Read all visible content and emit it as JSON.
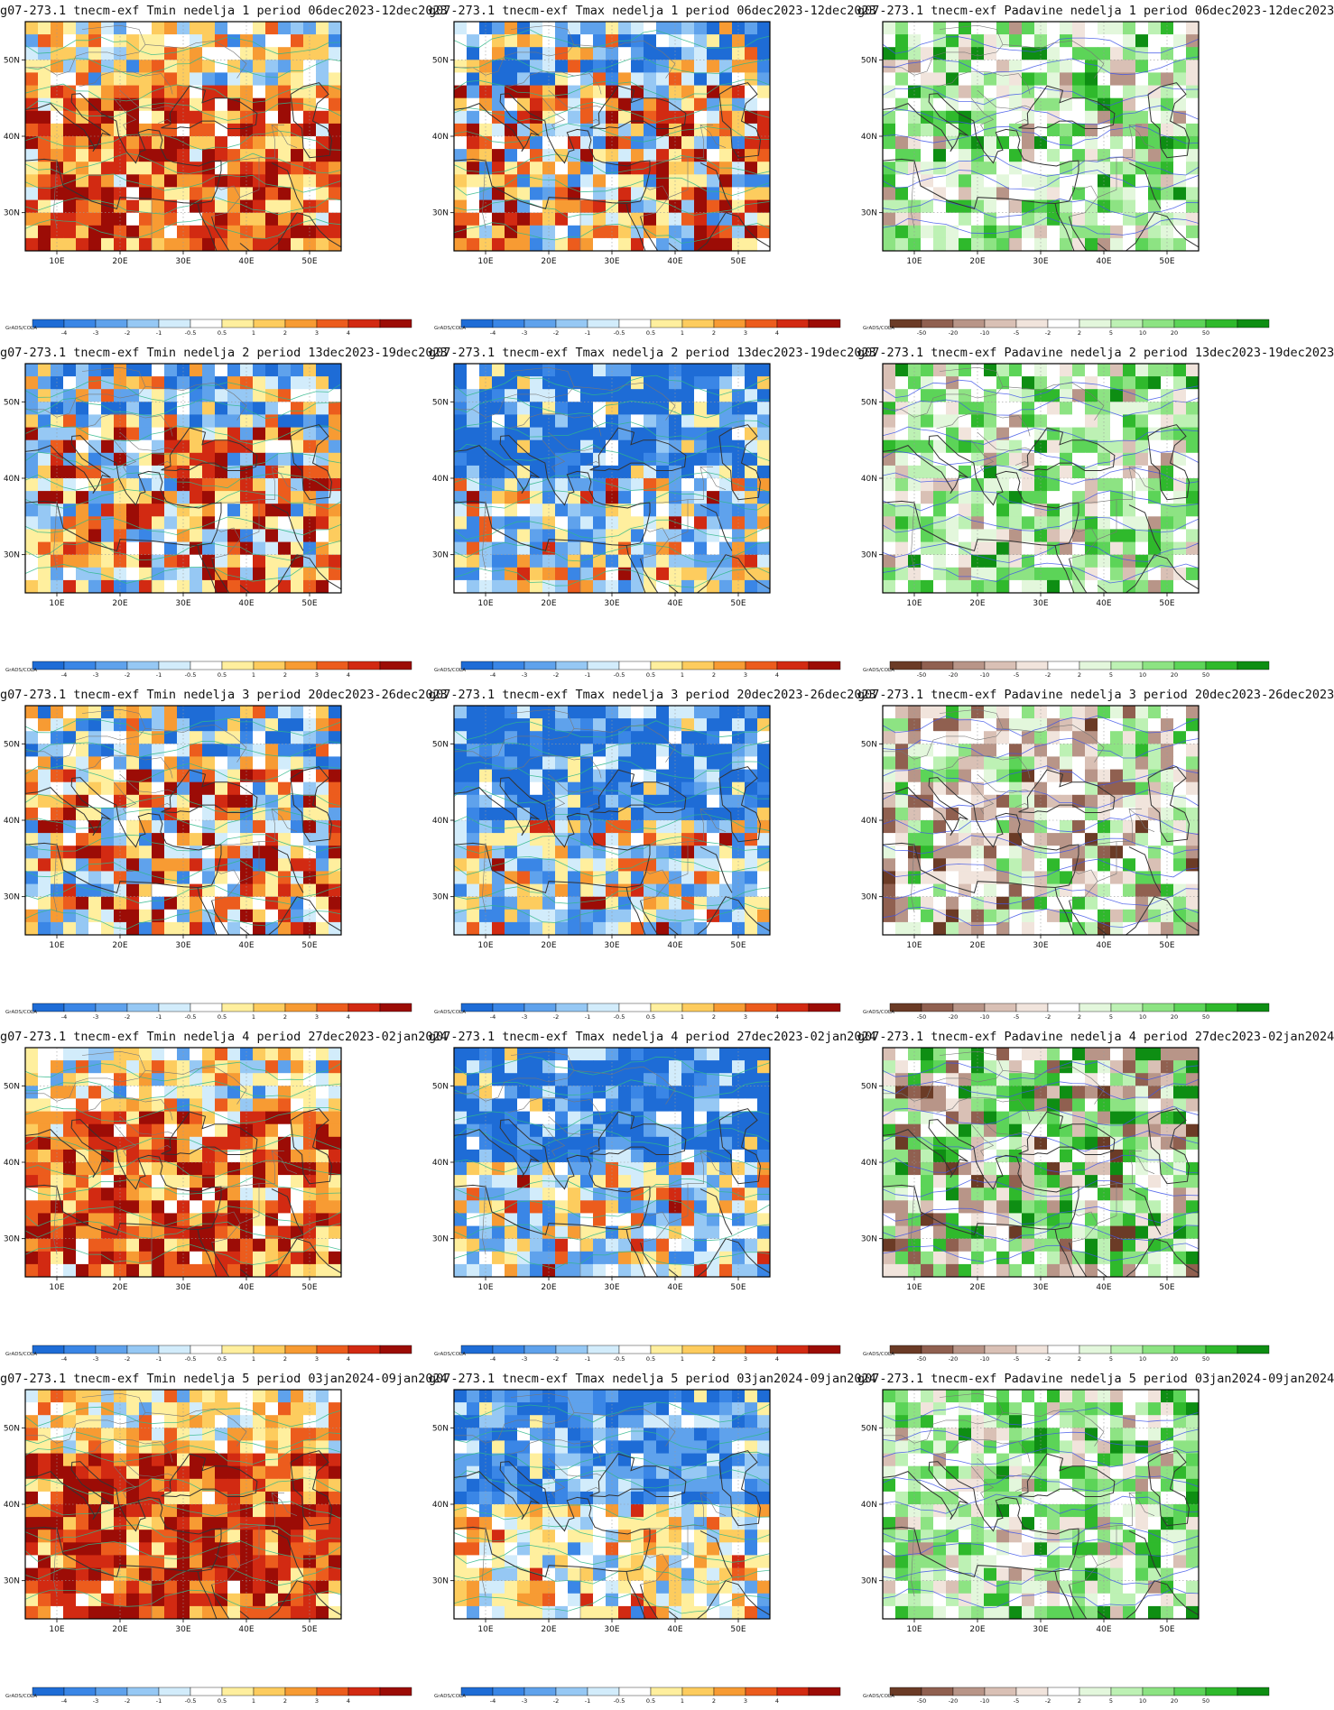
{
  "source_tag": "GrADS/COLA",
  "axes": {
    "x_ticks": [
      "10E",
      "20E",
      "30E",
      "40E",
      "50E"
    ],
    "y_ticks": [
      "50N",
      "40N",
      "30N"
    ]
  },
  "colorbars": {
    "temperature": {
      "labels": [
        "-4",
        "-3",
        "-2",
        "-1",
        "-0.5",
        "0.5",
        "1",
        "2",
        "3",
        "4"
      ],
      "colors": [
        "#1e6cd6",
        "#3a86e6",
        "#5fa2ec",
        "#96c8f4",
        "#d2ecfb",
        "#ffffff",
        "#ffef9e",
        "#fdcc5e",
        "#f79b33",
        "#ec5c1d",
        "#d22a12",
        "#9c0c06"
      ]
    },
    "precipitation": {
      "labels": [
        "-50",
        "-20",
        "-10",
        "-5",
        "-2",
        "2",
        "5",
        "10",
        "20",
        "50"
      ],
      "colors": [
        "#6b3b26",
        "#906050",
        "#b89588",
        "#d9c0b5",
        "#f1e4dc",
        "#ffffff",
        "#e3f7dc",
        "#bdf1b4",
        "#8de383",
        "#5cd458",
        "#2fb92c",
        "#0e8e13"
      ]
    }
  },
  "fields": {
    "Tmin": {
      "scale": "temperature",
      "contour_color": "#2fb88a"
    },
    "Tmax": {
      "scale": "temperature",
      "contour_color": "#2fb88a"
    },
    "Padavine": {
      "scale": "precipitation",
      "contour_color": "#3f55e8"
    }
  },
  "panels": [
    {
      "title": "g07-273.1 tnecm-exf Tmin nedelja 1 period 06dec2023-12dec2023",
      "field": "Tmin",
      "week": 1,
      "row": 0,
      "col": 0,
      "pattern": "warm"
    },
    {
      "title": "g07-273.1 tnecm-exf Tmax nedelja 1 period 06dec2023-12dec2023",
      "field": "Tmax",
      "week": 1,
      "row": 0,
      "col": 1,
      "pattern": "mixed"
    },
    {
      "title": "g07-273.1 tnecm-exf Padavine nedelja 1 period 06dec2023-12dec2023",
      "field": "Padavine",
      "week": 1,
      "row": 0,
      "col": 2,
      "pattern": "wet"
    },
    {
      "title": "g07-273.1 tnecm-exf Tmin nedelja 2 period 13dec2023-19dec2023",
      "field": "Tmin",
      "week": 2,
      "row": 1,
      "col": 0,
      "pattern": "mixed"
    },
    {
      "title": "g07-273.1 tnecm-exf Tmax nedelja 2 period 13dec2023-19dec2023",
      "field": "Tmax",
      "week": 2,
      "row": 1,
      "col": 1,
      "pattern": "cold"
    },
    {
      "title": "g07-273.1 tnecm-exf Padavine nedelja 2 period 13dec2023-19dec2023",
      "field": "Padavine",
      "week": 2,
      "row": 1,
      "col": 2,
      "pattern": "wet"
    },
    {
      "title": "g07-273.1 tnecm-exf Tmin nedelja 3 period 20dec2023-26dec2023",
      "field": "Tmin",
      "week": 3,
      "row": 2,
      "col": 0,
      "pattern": "mixed"
    },
    {
      "title": "g07-273.1 tnecm-exf Tmax nedelja 3 period 20dec2023-26dec2023",
      "field": "Tmax",
      "week": 3,
      "row": 2,
      "col": 1,
      "pattern": "cold"
    },
    {
      "title": "g07-273.1 tnecm-exf Padavine nedelja 3 period 20dec2023-26dec2023",
      "field": "Padavine",
      "week": 3,
      "row": 2,
      "col": 2,
      "pattern": "dry"
    },
    {
      "title": "g07-273.1 tnecm-exf Tmin nedelja 4 period 27dec2023-02jan2024",
      "field": "Tmin",
      "week": 4,
      "row": 3,
      "col": 0,
      "pattern": "warm"
    },
    {
      "title": "g07-273.1 tnecm-exf Tmax nedelja 4 period 27dec2023-02jan2024",
      "field": "Tmax",
      "week": 4,
      "row": 3,
      "col": 1,
      "pattern": "cold"
    },
    {
      "title": "g07-273.1 tnecm-exf Padavine nedelja 4 period 27dec2023-02jan2024",
      "field": "Padavine",
      "week": 4,
      "row": 3,
      "col": 2,
      "pattern": "mixed"
    },
    {
      "title": "g07-273.1 tnecm-exf Tmin nedelja 5 period 03jan2024-09jan2024",
      "field": "Tmin",
      "week": 5,
      "row": 4,
      "col": 0,
      "pattern": "hot"
    },
    {
      "title": "g07-273.1 tnecm-exf Tmax nedelja 5 period 03jan2024-09jan2024",
      "field": "Tmax",
      "week": 5,
      "row": 4,
      "col": 1,
      "pattern": "neutral"
    },
    {
      "title": "g07-273.1 tnecm-exf Padavine nedelja 5 period 03jan2024-09jan2024",
      "field": "Padavine",
      "week": 5,
      "row": 4,
      "col": 2,
      "pattern": "wet"
    }
  ]
}
